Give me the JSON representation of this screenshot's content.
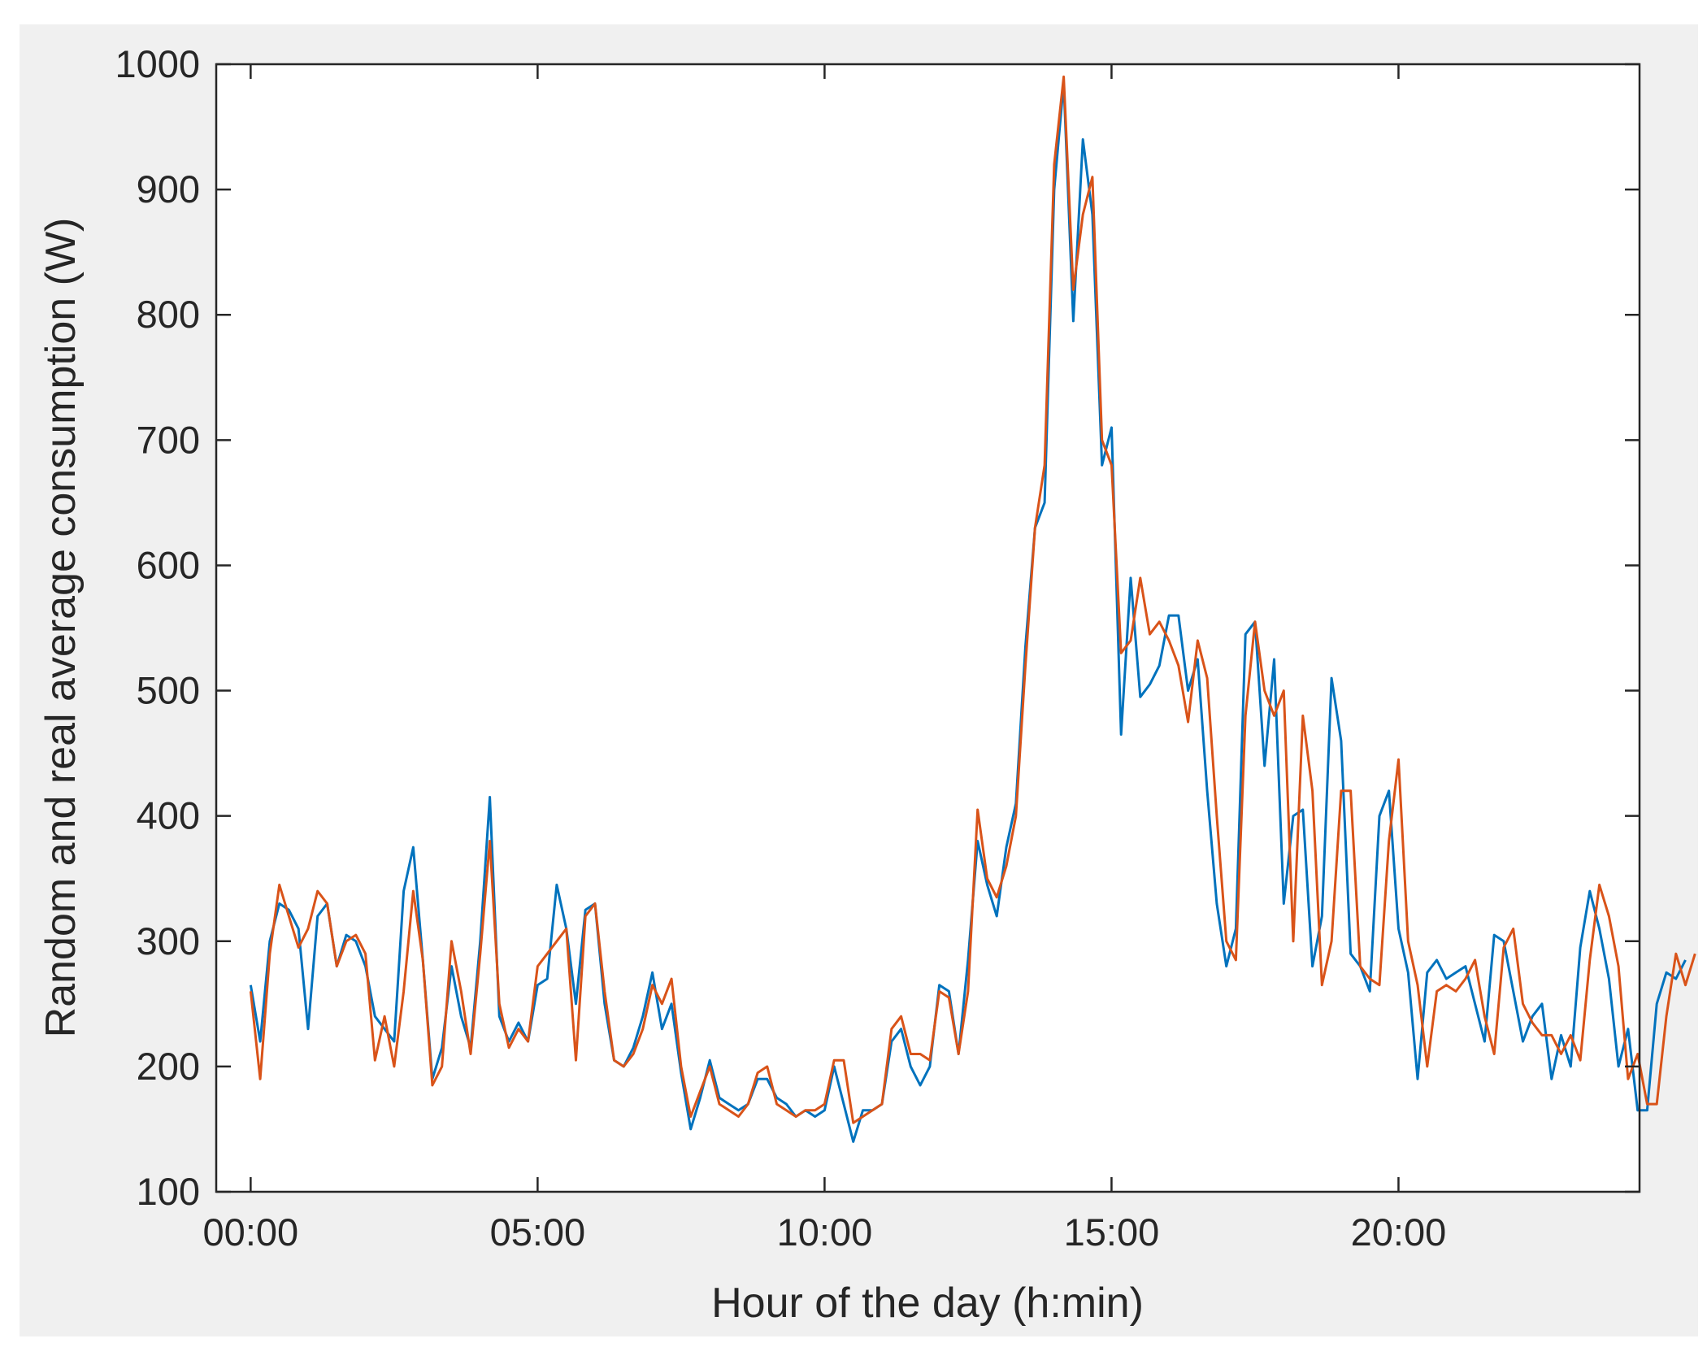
{
  "chart_data": {
    "type": "line",
    "title": "",
    "xlabel": "Hour of the day (h:min)",
    "ylabel": "Random and real average consumption (W)",
    "xlim": [
      -0.6,
      24.2
    ],
    "ylim": [
      100,
      1000
    ],
    "x_ticks": [
      {
        "value": 0,
        "label": "00:00"
      },
      {
        "value": 5,
        "label": "05:00"
      },
      {
        "value": 10,
        "label": "10:00"
      },
      {
        "value": 15,
        "label": "15:00"
      },
      {
        "value": 20,
        "label": "20:00"
      }
    ],
    "y_ticks": [
      {
        "value": 100,
        "label": "100"
      },
      {
        "value": 200,
        "label": "200"
      },
      {
        "value": 300,
        "label": "300"
      },
      {
        "value": 400,
        "label": "400"
      },
      {
        "value": 500,
        "label": "500"
      },
      {
        "value": 600,
        "label": "600"
      },
      {
        "value": 700,
        "label": "700"
      },
      {
        "value": 800,
        "label": "800"
      },
      {
        "value": 900,
        "label": "900"
      },
      {
        "value": 1000,
        "label": "1000"
      }
    ],
    "grid": false,
    "legend": "none",
    "x_step_hours": 0.16667,
    "series": [
      {
        "color": "#0072BD",
        "values": [
          265,
          220,
          300,
          330,
          325,
          310,
          230,
          320,
          330,
          280,
          305,
          300,
          280,
          240,
          230,
          220,
          340,
          375,
          285,
          190,
          215,
          280,
          240,
          215,
          300,
          415,
          240,
          220,
          235,
          220,
          265,
          270,
          345,
          310,
          250,
          325,
          330,
          250,
          205,
          200,
          215,
          240,
          275,
          230,
          250,
          195,
          150,
          175,
          205,
          175,
          170,
          165,
          170,
          190,
          190,
          175,
          170,
          160,
          165,
          160,
          165,
          200,
          170,
          140,
          165,
          165,
          170,
          220,
          230,
          200,
          185,
          200,
          265,
          260,
          210,
          285,
          380,
          345,
          320,
          375,
          410,
          535,
          630,
          650,
          900,
          985,
          795,
          940,
          880,
          680,
          710,
          465,
          590,
          495,
          505,
          520,
          560,
          560,
          500,
          525,
          420,
          330,
          280,
          310,
          545,
          555,
          440,
          525,
          330,
          400,
          405,
          280,
          320,
          510,
          460,
          290,
          280,
          260,
          400,
          420,
          310,
          275,
          190,
          275,
          285,
          270,
          275,
          280,
          250,
          220,
          305,
          300,
          260,
          220,
          240,
          250,
          190,
          225,
          200,
          295,
          340,
          310,
          270,
          200,
          230,
          165,
          165,
          250,
          275,
          270,
          285
        ]
      },
      {
        "color": "#D95319",
        "values": [
          260,
          190,
          290,
          345,
          320,
          295,
          310,
          340,
          330,
          280,
          300,
          305,
          290,
          205,
          240,
          200,
          260,
          340,
          285,
          185,
          200,
          300,
          260,
          210,
          290,
          380,
          250,
          215,
          230,
          220,
          280,
          290,
          300,
          310,
          205,
          320,
          330,
          260,
          205,
          200,
          210,
          230,
          265,
          250,
          270,
          200,
          160,
          180,
          200,
          170,
          165,
          160,
          170,
          195,
          200,
          170,
          165,
          160,
          165,
          165,
          170,
          205,
          205,
          155,
          160,
          165,
          170,
          230,
          240,
          210,
          210,
          205,
          260,
          255,
          210,
          260,
          405,
          350,
          335,
          360,
          400,
          520,
          630,
          680,
          920,
          990,
          820,
          880,
          910,
          700,
          680,
          530,
          540,
          590,
          545,
          555,
          540,
          520,
          475,
          540,
          510,
          400,
          300,
          285,
          480,
          555,
          500,
          480,
          500,
          300,
          480,
          420,
          265,
          300,
          420,
          420,
          280,
          270,
          265,
          380,
          445,
          300,
          265,
          200,
          260,
          265,
          260,
          270,
          285,
          240,
          210,
          295,
          310,
          250,
          235,
          225,
          225,
          210,
          225,
          205,
          285,
          345,
          320,
          280,
          190,
          210,
          170,
          170,
          240,
          290,
          265,
          290
        ]
      }
    ]
  }
}
